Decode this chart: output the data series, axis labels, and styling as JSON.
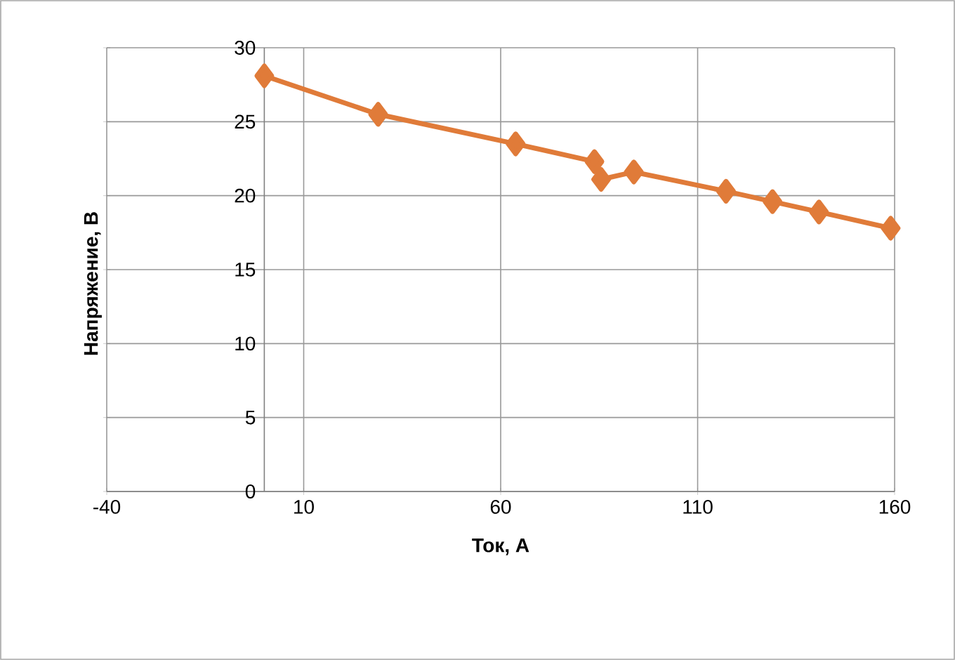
{
  "chart_data": {
    "type": "line",
    "xlabel": "Ток, А",
    "ylabel": "Напряжение, В",
    "x": [
      0,
      28.9,
      63.8,
      83.8,
      85.5,
      93.8,
      117.2,
      129,
      140.8,
      159
    ],
    "series": [
      {
        "color": "#e07b39",
        "values": [
          28.1,
          25.5,
          23.5,
          22.3,
          21.1,
          21.6,
          20.3,
          19.6,
          18.9,
          17.8
        ]
      }
    ],
    "xlim": [
      -40,
      160
    ],
    "xticks": [
      -40,
      10,
      60,
      110,
      160
    ],
    "ylim": [
      0,
      30
    ],
    "yticks": [
      0,
      5,
      10,
      15,
      20,
      25,
      30
    ],
    "grid": true,
    "marker": "diamond"
  }
}
